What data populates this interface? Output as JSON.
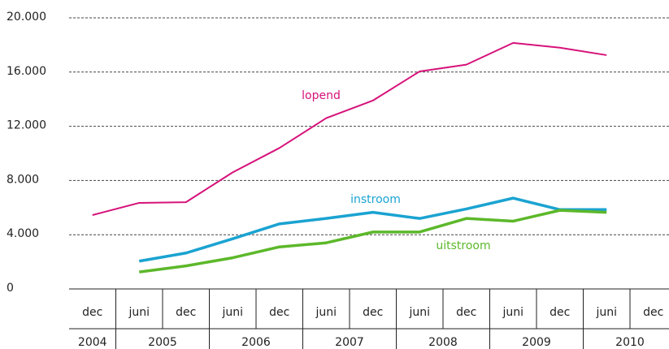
{
  "chart_data": {
    "type": "line",
    "categories": [
      "dec",
      "juni",
      "dec",
      "juni",
      "dec",
      "juni",
      "dec",
      "juni",
      "dec",
      "juni",
      "dec",
      "juni",
      "dec"
    ],
    "years": [
      "2004",
      "2005",
      "2006",
      "2007",
      "2008",
      "2009",
      "2010"
    ],
    "series": [
      {
        "name": "lopend",
        "color": "#d6127a",
        "values": [
          5450,
          6350,
          6400,
          8600,
          10400,
          12600,
          13900,
          16050,
          16550,
          18150,
          17800,
          17250,
          null
        ]
      },
      {
        "name": "instroom",
        "color": "#1aa3d1",
        "values": [
          null,
          2050,
          2650,
          3700,
          4800,
          5200,
          5650,
          5200,
          5900,
          6700,
          5850,
          5850,
          null
        ]
      },
      {
        "name": "uitstroom",
        "color": "#5cb82a",
        "values": [
          null,
          1250,
          1700,
          2300,
          3100,
          3400,
          4200,
          4200,
          5200,
          5000,
          5800,
          5650,
          null
        ]
      }
    ],
    "ylim": [
      0,
      20000
    ],
    "yticks": [
      0,
      {
        "value": 4000,
        "label": "4.000"
      },
      {
        "value": 8000,
        "label": "8.000"
      },
      {
        "value": 12000,
        "label": "12.000"
      },
      {
        "value": 16000,
        "label": "16.000"
      },
      {
        "value": 20000,
        "label": "20.000"
      }
    ],
    "grid": true
  }
}
